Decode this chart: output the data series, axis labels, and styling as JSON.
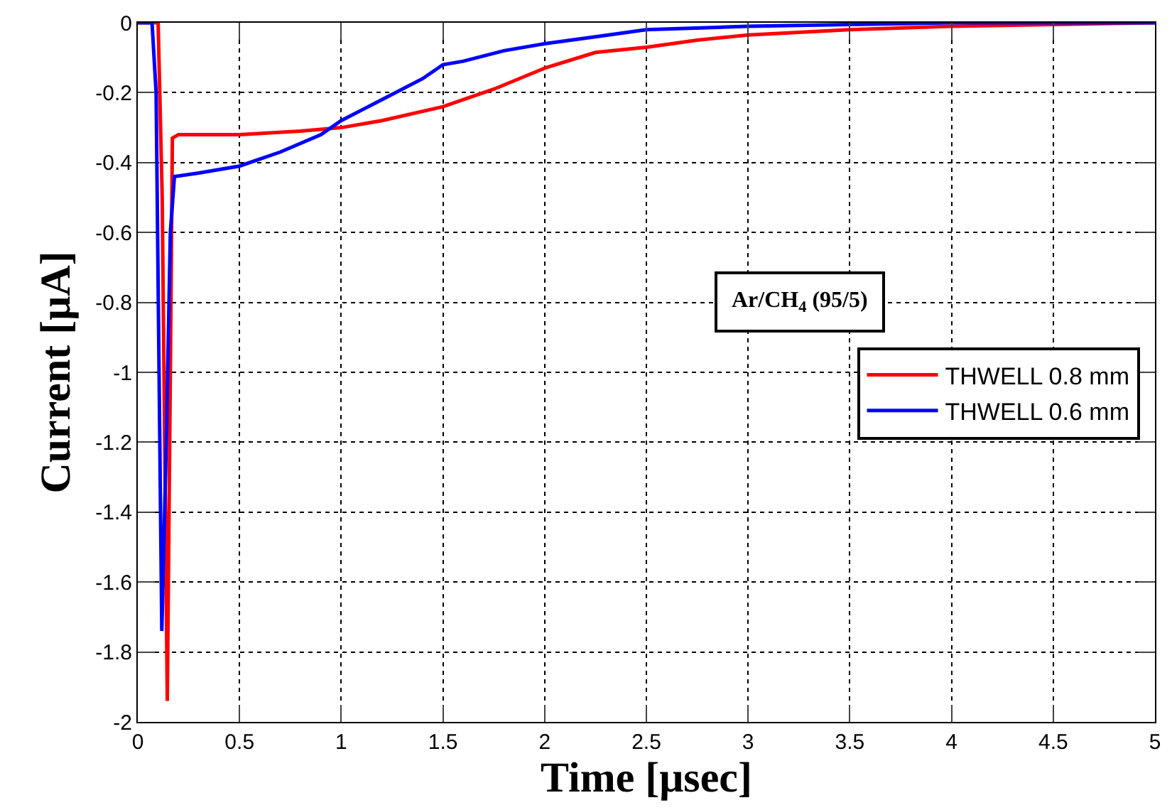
{
  "chart_data": {
    "type": "line",
    "xlabel": "Time [μsec]",
    "ylabel": "Current [μA]",
    "annotations": [
      "Ar/CH$_{4}$ (95/5)"
    ],
    "series": [
      {
        "name": "THWELL 0.8 mm",
        "color": "#ff0000",
        "x": [
          0,
          0.1,
          0.12,
          0.145,
          0.16,
          0.17,
          0.2,
          0.5,
          0.8,
          1.0,
          1.2,
          1.5,
          1.75,
          2.0,
          2.25,
          2.5,
          2.75,
          3.0,
          3.5,
          4.0,
          4.5,
          5.0
        ],
        "values": [
          0,
          0,
          -0.5,
          -1.94,
          -1.0,
          -0.33,
          -0.32,
          -0.32,
          -0.31,
          -0.3,
          -0.28,
          -0.24,
          -0.19,
          -0.13,
          -0.085,
          -0.07,
          -0.05,
          -0.035,
          -0.02,
          -0.01,
          -0.005,
          0
        ]
      },
      {
        "name": "THWELL 0.6 mm",
        "color": "#0000ff",
        "x": [
          0,
          0.07,
          0.09,
          0.118,
          0.14,
          0.16,
          0.18,
          0.3,
          0.5,
          0.7,
          0.9,
          1.0,
          1.2,
          1.4,
          1.5,
          1.6,
          1.8,
          2.0,
          2.25,
          2.5,
          3.0,
          3.5,
          4.0,
          5.0
        ],
        "values": [
          0,
          0,
          -0.2,
          -1.74,
          -1.2,
          -0.6,
          -0.44,
          -0.43,
          -0.41,
          -0.37,
          -0.32,
          -0.28,
          -0.22,
          -0.16,
          -0.12,
          -0.11,
          -0.08,
          -0.06,
          -0.04,
          -0.02,
          -0.01,
          -0.005,
          0,
          0
        ]
      }
    ],
    "xlim": [
      0,
      5
    ],
    "xticks": [
      0,
      0.5,
      1,
      1.5,
      2,
      2.5,
      3,
      3.5,
      4,
      4.5,
      5
    ],
    "ylim": [
      -2,
      0
    ],
    "yticks": [
      -2,
      -1.8,
      -1.6,
      -1.4,
      -1.2,
      -1,
      -0.8,
      -0.6,
      -0.4,
      -0.2,
      0
    ],
    "grid": true,
    "legend": "right",
    "line_style": "solid",
    "marker": "none"
  }
}
